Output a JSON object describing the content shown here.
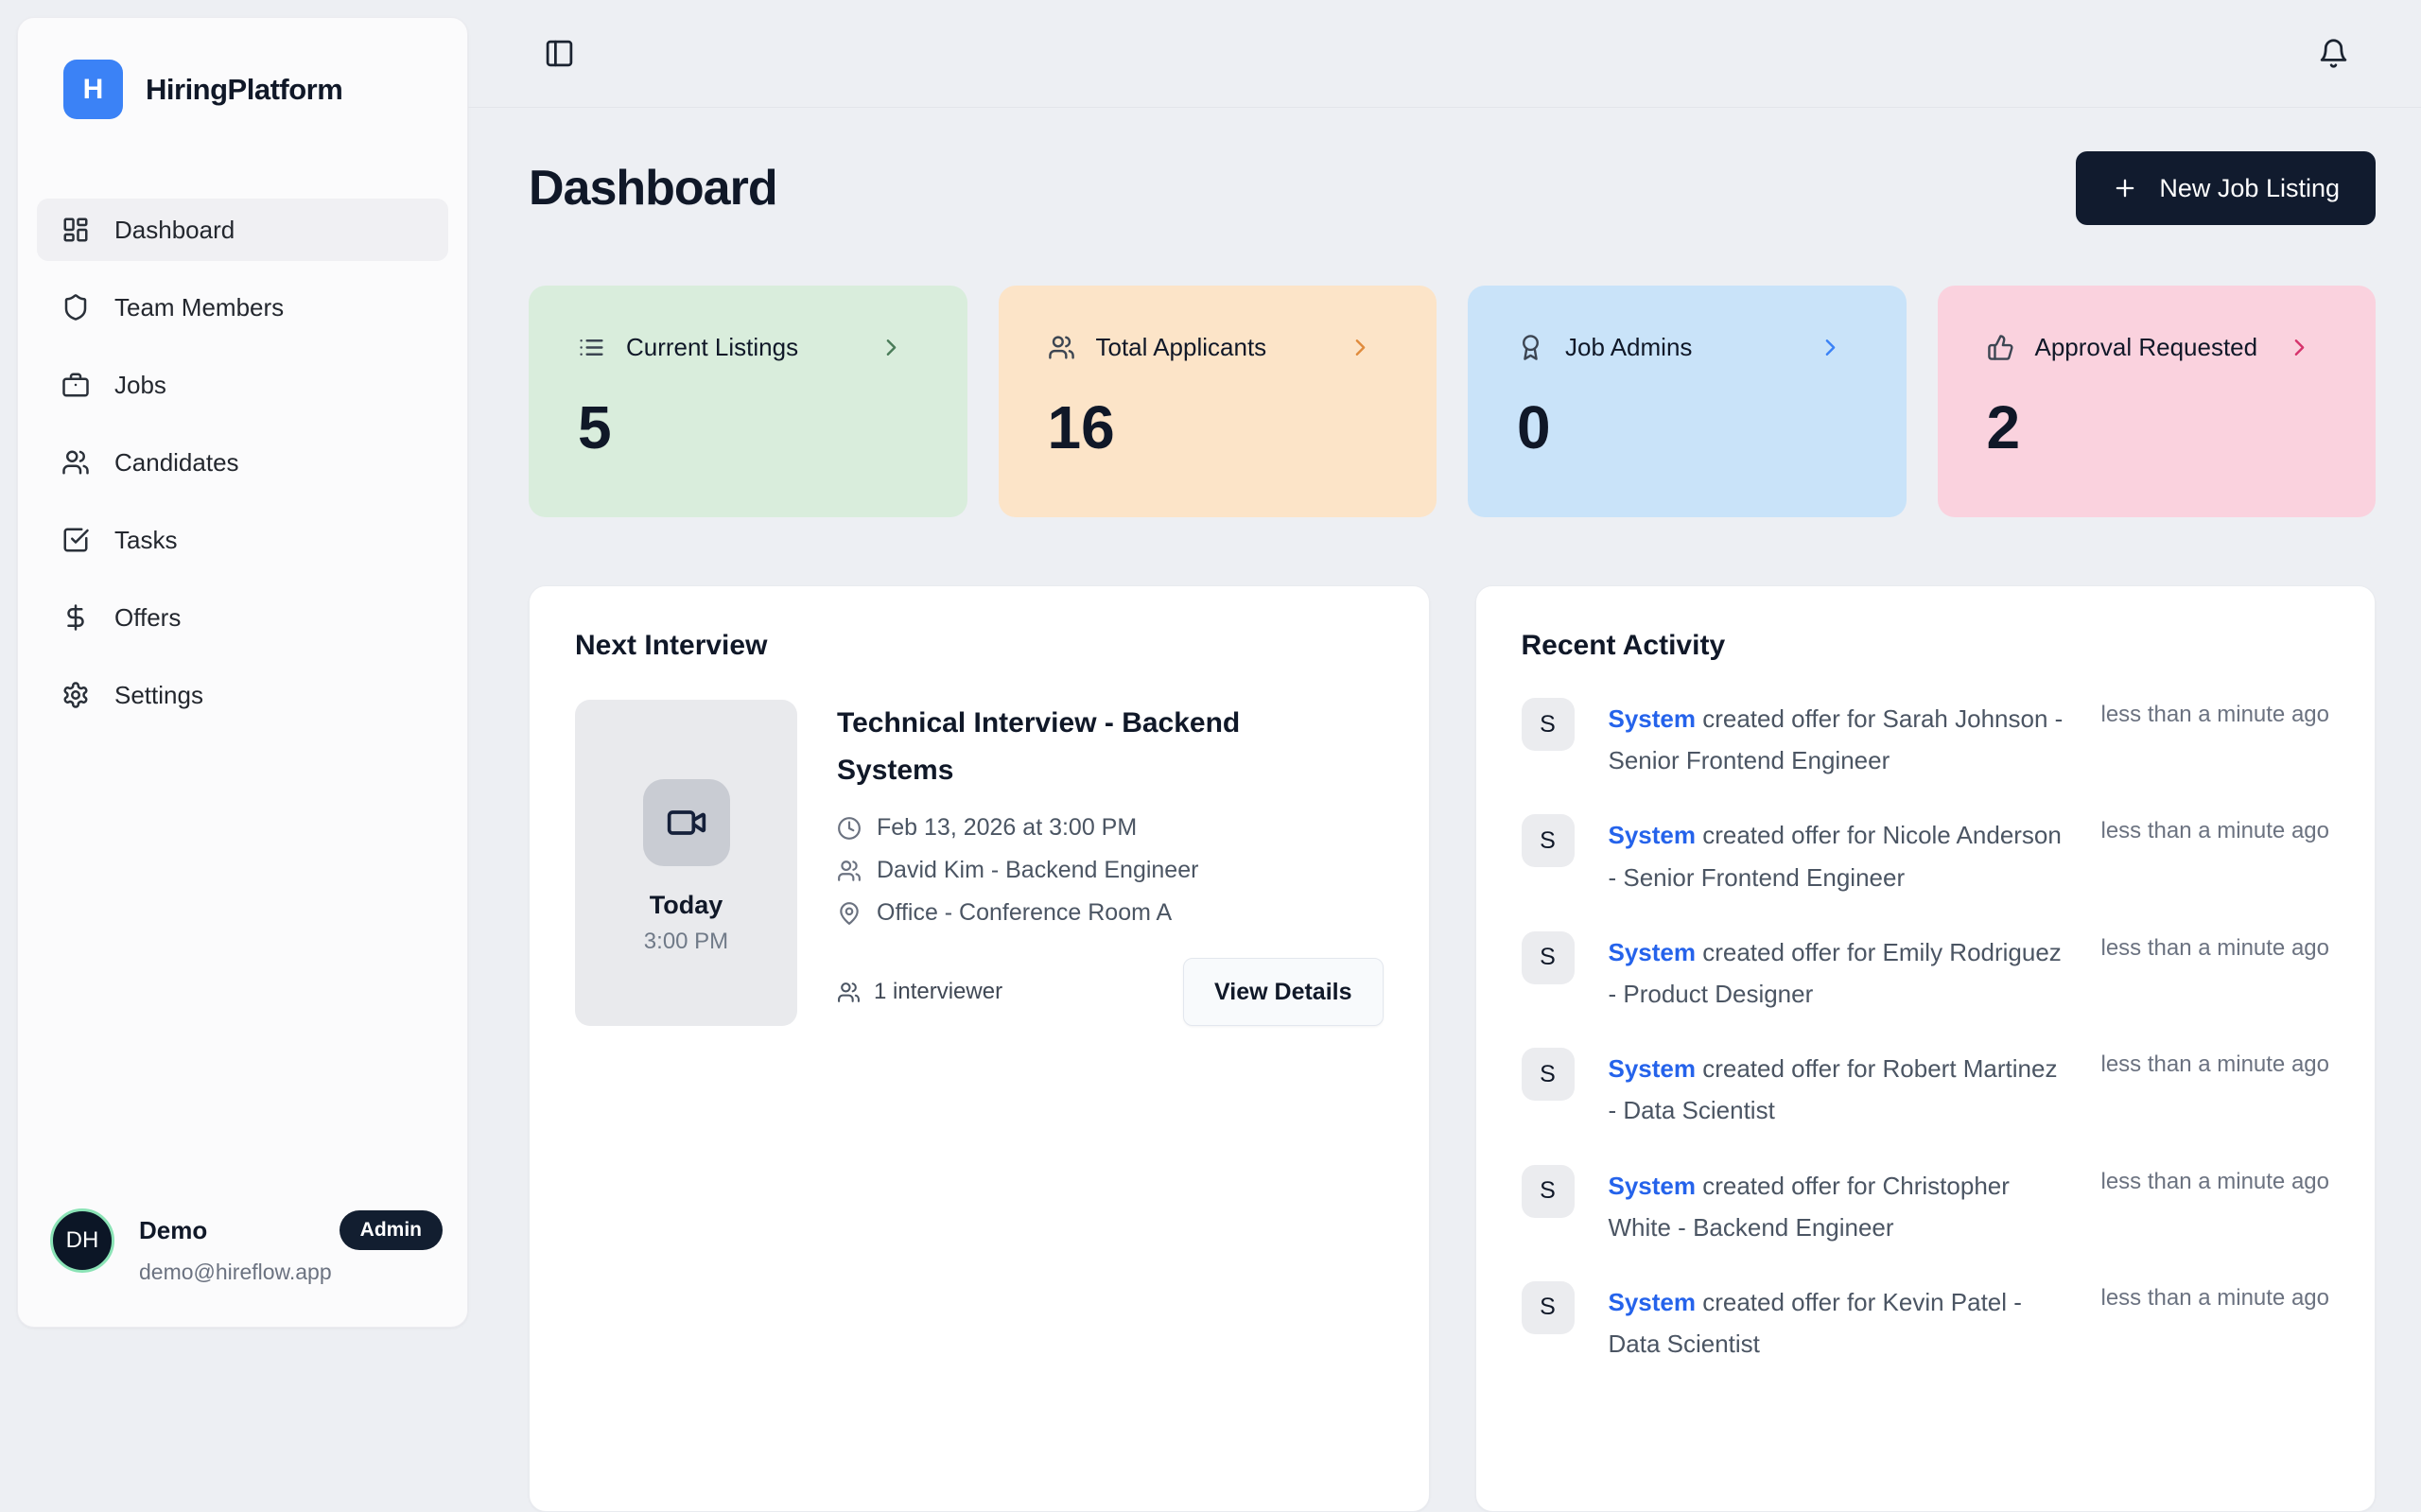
{
  "brand": {
    "logo_letter": "H",
    "name": "HiringPlatform"
  },
  "sidebar": {
    "items": [
      {
        "label": "Dashboard",
        "icon": "dashboard",
        "active": true
      },
      {
        "label": "Team Members",
        "icon": "shield",
        "active": false
      },
      {
        "label": "Jobs",
        "icon": "briefcase",
        "active": false
      },
      {
        "label": "Candidates",
        "icon": "users",
        "active": false
      },
      {
        "label": "Tasks",
        "icon": "square-check",
        "active": false
      },
      {
        "label": "Offers",
        "icon": "dollar",
        "active": false
      },
      {
        "label": "Settings",
        "icon": "gear",
        "active": false
      }
    ],
    "user": {
      "initials": "DH",
      "name": "Demo",
      "role_badge": "Admin",
      "email": "demo@hireflow.app"
    }
  },
  "topbar": {
    "left_icon": "panel-left",
    "right_icon": "bell"
  },
  "header": {
    "title": "Dashboard",
    "new_job_button": "New Job Listing"
  },
  "stats": [
    {
      "label": "Current Listings",
      "value": "5",
      "icon": "list",
      "bg": "#d9eddc",
      "accent": "#4a7c59"
    },
    {
      "label": "Total Applicants",
      "value": "16",
      "icon": "users",
      "bg": "#fce4c8",
      "accent": "#e08b3d"
    },
    {
      "label": "Job Admins",
      "value": "0",
      "icon": "award",
      "bg": "#c9e3f9",
      "accent": "#3b82f6"
    },
    {
      "label": "Approval Requested",
      "value": "2",
      "icon": "thumbs-up",
      "bg": "#fad2de",
      "accent": "#d6336c"
    }
  ],
  "next_interview": {
    "heading": "Next Interview",
    "day": "Today",
    "time": "3:00 PM",
    "title": "Technical Interview - Backend Systems",
    "datetime": "Feb 13, 2026 at 3:00 PM",
    "interviewer": "David Kim - Backend Engineer",
    "location": "Office - Conference Room A",
    "interviewer_count": "1 interviewer",
    "view_details_label": "View Details"
  },
  "recent_activity": {
    "heading": "Recent Activity",
    "items": [
      {
        "avatar": "S",
        "actor": "System",
        "message": " created offer for Sarah Johnson - Senior Frontend Engineer",
        "time": "less than a minute ago"
      },
      {
        "avatar": "S",
        "actor": "System",
        "message": " created offer for Nicole Anderson - Senior Frontend Engineer",
        "time": "less than a minute ago"
      },
      {
        "avatar": "S",
        "actor": "System",
        "message": " created offer for Emily Rodriguez - Product Designer",
        "time": "less than a minute ago"
      },
      {
        "avatar": "S",
        "actor": "System",
        "message": " created offer for Robert Martinez - Data Scientist",
        "time": "less than a minute ago"
      },
      {
        "avatar": "S",
        "actor": "System",
        "message": " created offer for Christopher White - Backend Engineer",
        "time": "less than a minute ago"
      },
      {
        "avatar": "S",
        "actor": "System",
        "message": " created offer for Kevin Patel - Data Scientist",
        "time": "less than a minute ago"
      }
    ]
  }
}
